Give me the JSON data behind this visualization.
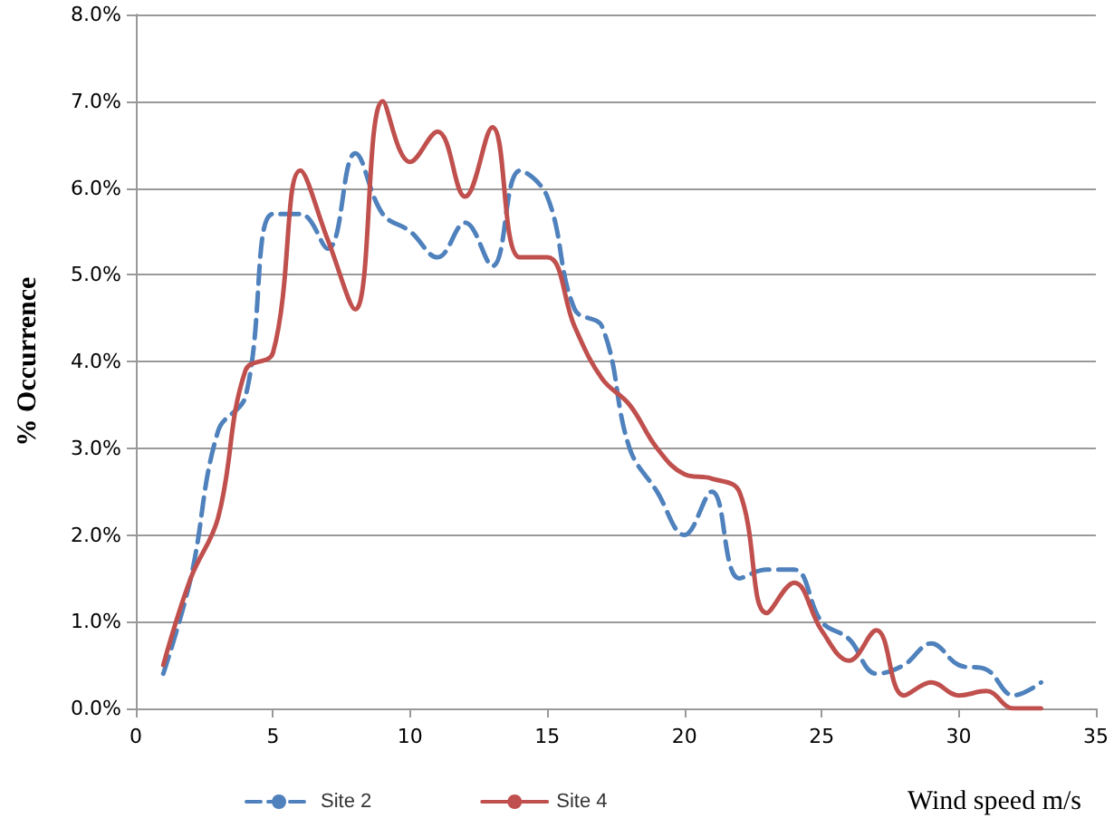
{
  "chart_data": {
    "type": "line",
    "xlabel": "Wind speed m/s",
    "ylabel": "% Occurrence",
    "xlim": [
      0,
      35
    ],
    "xticks": [
      0,
      5,
      10,
      15,
      20,
      25,
      30,
      35
    ],
    "ylim": [
      0,
      8
    ],
    "yticks": [
      {
        "value": 0,
        "label": "0.0%"
      },
      {
        "value": 1,
        "label": "1.0%"
      },
      {
        "value": 2,
        "label": "2.0%"
      },
      {
        "value": 3,
        "label": "3.0%"
      },
      {
        "value": 4,
        "label": "4.0%"
      },
      {
        "value": 5,
        "label": "5.0%"
      },
      {
        "value": 6,
        "label": "6.0%"
      },
      {
        "value": 7,
        "label": "7.0%"
      },
      {
        "value": 8,
        "label": "8.0%"
      }
    ],
    "x": [
      1,
      2,
      3,
      4,
      5,
      6,
      7,
      8,
      9,
      10,
      11,
      12,
      13,
      14,
      15,
      16,
      17,
      18,
      19,
      20,
      21,
      22,
      23,
      24,
      25,
      26,
      27,
      28,
      29,
      30,
      31,
      32,
      33
    ],
    "grid": "y",
    "legend": "bottom",
    "marker": "none",
    "series": [
      {
        "name": "Site 2",
        "color": "#4f81bd",
        "line_style": "dashed",
        "values": [
          0.4,
          1.5,
          3.2,
          3.6,
          5.7,
          5.7,
          5.3,
          6.4,
          5.7,
          5.5,
          5.2,
          5.6,
          5.1,
          6.2,
          5.9,
          4.6,
          4.4,
          3.0,
          2.5,
          2.0,
          2.5,
          1.5,
          1.6,
          1.6,
          1.0,
          0.8,
          0.4,
          0.5,
          0.75,
          0.5,
          0.45,
          0.15,
          0.3
        ]
      },
      {
        "name": "Site 4",
        "color": "#c0504d",
        "line_style": "solid",
        "values": [
          0.5,
          1.5,
          2.2,
          3.9,
          4.1,
          6.2,
          5.4,
          4.6,
          7.0,
          6.3,
          6.65,
          5.9,
          6.7,
          5.2,
          5.2,
          4.4,
          3.8,
          3.5,
          3.0,
          2.7,
          2.65,
          2.5,
          1.1,
          1.45,
          0.9,
          0.55,
          0.9,
          0.15,
          0.3,
          0.15,
          0.2,
          0.0,
          0.0
        ]
      }
    ]
  }
}
